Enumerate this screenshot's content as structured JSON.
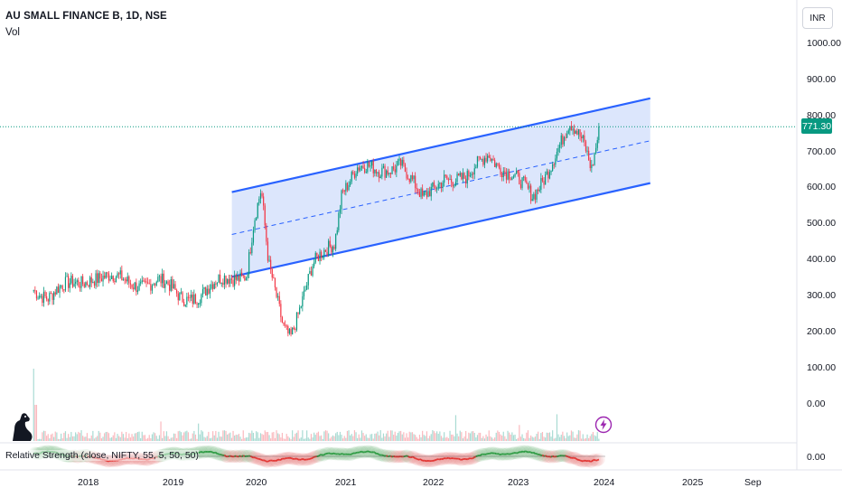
{
  "header": {
    "symbol_title": "AU SMALL FINANCE B, 1D, NSE",
    "volume_label": "Vol"
  },
  "currency_button": "INR",
  "price_axis": {
    "ticks": [
      "1000.00",
      "900.00",
      "800.00",
      "700.00",
      "600.00",
      "500.00",
      "400.00",
      "300.00",
      "200.00",
      "100.00",
      "0.00"
    ],
    "last_price": "771.30"
  },
  "time_axis": {
    "ticks": [
      "2018",
      "2019",
      "2020",
      "2021",
      "2022",
      "2023",
      "2024",
      "2025",
      "Sep"
    ]
  },
  "indicator": {
    "label": "Relative Strength (close, NIFTY, 55, 5, 50, 50)",
    "axis_value": "0.00"
  },
  "icons": {
    "logo": "tradingview-dino-icon",
    "alert": "lightning-icon"
  },
  "colors": {
    "channel_line": "#2962ff",
    "channel_fill": "#d6e2fc",
    "up": "#089981",
    "down": "#f23645",
    "rs_up": "#2e9e45",
    "rs_down": "#e53935"
  },
  "chart_data": {
    "type": "candlestick",
    "ylim": [
      0,
      1000
    ],
    "channel": {
      "upper": {
        "from": [
          "2019-10",
          590
        ],
        "to": [
          "2024-07",
          850
        ]
      },
      "lower": {
        "from": [
          "2019-10",
          355
        ],
        "to": [
          "2024-07",
          615
        ]
      }
    },
    "price_path": [
      [
        "2017-07",
        330
      ],
      [
        "2017-09",
        300
      ],
      [
        "2017-12",
        330
      ],
      [
        "2018-03",
        360
      ],
      [
        "2018-06",
        345
      ],
      [
        "2018-09",
        340
      ],
      [
        "2018-12",
        340
      ],
      [
        "2019-03",
        300
      ],
      [
        "2019-06",
        310
      ],
      [
        "2019-09",
        345
      ],
      [
        "2019-12",
        370
      ],
      [
        "2020-01",
        510
      ],
      [
        "2020-02",
        590
      ],
      [
        "2020-03",
        380
      ],
      [
        "2020-05",
        220
      ],
      [
        "2020-06",
        200
      ],
      [
        "2020-09",
        380
      ],
      [
        "2020-12",
        450
      ],
      [
        "2021-01",
        600
      ],
      [
        "2021-03",
        660
      ],
      [
        "2021-06",
        640
      ],
      [
        "2021-09",
        680
      ],
      [
        "2021-12",
        560
      ],
      [
        "2022-03",
        640
      ],
      [
        "2022-06",
        620
      ],
      [
        "2022-09",
        700
      ],
      [
        "2022-12",
        640
      ],
      [
        "2023-03",
        570
      ],
      [
        "2023-06",
        700
      ],
      [
        "2023-08",
        770
      ],
      [
        "2023-10",
        720
      ],
      [
        "2023-11",
        660
      ],
      [
        "2023-12",
        771.3
      ]
    ],
    "last_price": 771.3
  }
}
